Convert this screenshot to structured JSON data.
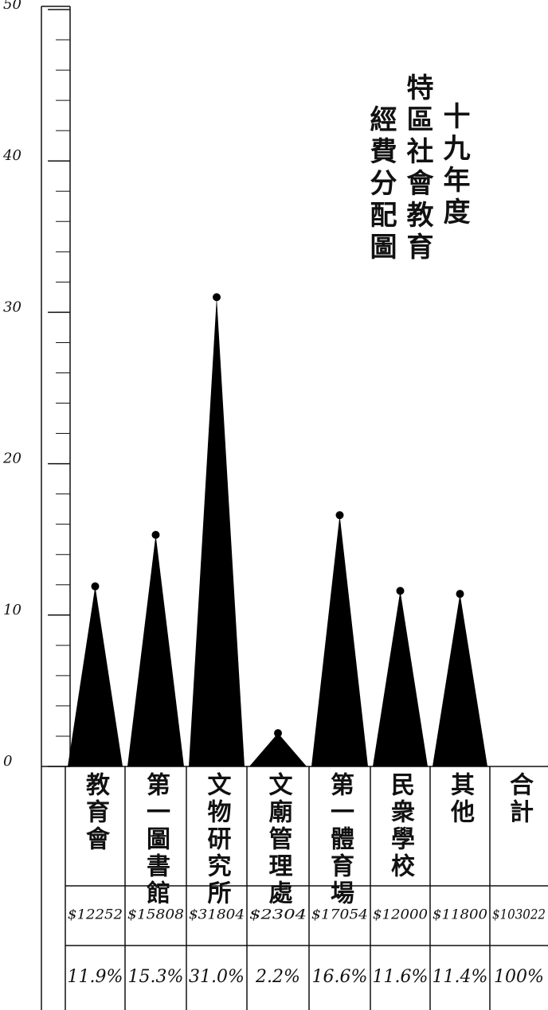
{
  "chart_data": {
    "type": "peak",
    "title_lines": [
      "十九年度",
      "特區社會教育",
      "經費分配圖"
    ],
    "categories": [
      "教育會",
      "第一圖書館",
      "文物研究所",
      "文廟管理處",
      "第一體育場",
      "民衆學校",
      "其他",
      "合計"
    ],
    "values": [
      11.9,
      15.3,
      31.0,
      2.2,
      16.6,
      11.6,
      11.4,
      null
    ],
    "amount_labels": [
      "$12252",
      "$15808",
      "$31804",
      "$2304",
      "$17054",
      "$12000",
      "$11800",
      "$103022"
    ],
    "percent_labels": [
      "11.9%",
      "15.3%",
      "31.0%",
      "2.2%",
      "16.6%",
      "11.6%",
      "11.4%",
      "100%"
    ],
    "color": "#000000",
    "ylim": [
      0,
      50
    ],
    "yticks": [
      0,
      10,
      20,
      30,
      40,
      50
    ]
  }
}
